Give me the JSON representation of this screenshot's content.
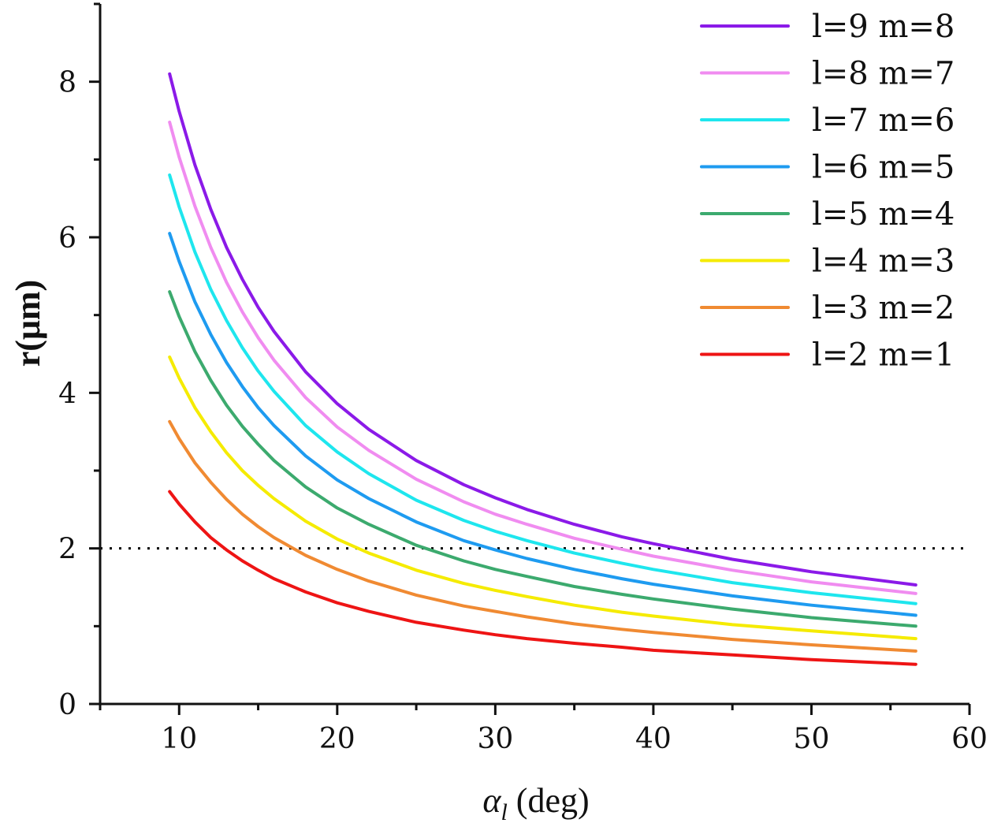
{
  "chart_data": {
    "type": "line",
    "xlabel": {
      "symbol": "α",
      "subscript": "l",
      "unit": " (deg)"
    },
    "ylabel": "r(μm)",
    "xlim": [
      5,
      60
    ],
    "ylim": [
      0,
      9
    ],
    "xticks": [
      10,
      20,
      30,
      40,
      50,
      60
    ],
    "yticks": [
      0,
      2,
      4,
      6,
      8
    ],
    "grid": false,
    "legend_position": "top-right",
    "reference_line": {
      "y": 2,
      "style": "dotted",
      "color": "#000000"
    },
    "x": [
      9.4,
      10,
      11,
      12,
      13,
      14,
      15,
      16,
      18,
      20,
      22,
      25,
      28,
      30,
      32,
      35,
      38,
      40,
      45,
      50,
      56.6
    ],
    "series": [
      {
        "name": "l=9  m=8",
        "color": "#8B1AE8",
        "values": [
          8.1,
          7.62,
          6.93,
          6.36,
          5.87,
          5.46,
          5.1,
          4.79,
          4.27,
          3.86,
          3.53,
          3.13,
          2.82,
          2.65,
          2.5,
          2.31,
          2.15,
          2.06,
          1.86,
          1.7,
          1.53
        ]
      },
      {
        "name": "l=8  m=7",
        "color": "#F08CF0",
        "values": [
          7.48,
          7.03,
          6.4,
          5.87,
          5.42,
          5.04,
          4.71,
          4.42,
          3.94,
          3.56,
          3.26,
          2.89,
          2.6,
          2.44,
          2.31,
          2.13,
          1.99,
          1.9,
          1.72,
          1.57,
          1.42
        ]
      },
      {
        "name": "l=7  m=6",
        "color": "#1EE6EE",
        "values": [
          6.8,
          6.39,
          5.81,
          5.33,
          4.93,
          4.58,
          4.28,
          4.02,
          3.58,
          3.24,
          2.96,
          2.62,
          2.36,
          2.22,
          2.1,
          1.94,
          1.81,
          1.73,
          1.56,
          1.43,
          1.29
        ]
      },
      {
        "name": "l=6  m=5",
        "color": "#1E9BF0",
        "values": [
          6.05,
          5.69,
          5.17,
          4.75,
          4.39,
          4.08,
          3.81,
          3.58,
          3.19,
          2.88,
          2.64,
          2.34,
          2.1,
          1.98,
          1.87,
          1.73,
          1.61,
          1.54,
          1.39,
          1.27,
          1.14
        ]
      },
      {
        "name": "l=5  m=4",
        "color": "#3CAA6E",
        "values": [
          5.3,
          4.98,
          4.53,
          4.16,
          3.84,
          3.57,
          3.34,
          3.13,
          2.79,
          2.52,
          2.31,
          2.04,
          1.84,
          1.73,
          1.64,
          1.51,
          1.41,
          1.35,
          1.22,
          1.11,
          1.0
        ]
      },
      {
        "name": "l=4  m=3",
        "color": "#F5EB00",
        "values": [
          4.46,
          4.19,
          3.81,
          3.5,
          3.23,
          3.0,
          2.81,
          2.64,
          2.35,
          2.12,
          1.94,
          1.72,
          1.55,
          1.46,
          1.38,
          1.27,
          1.18,
          1.13,
          1.02,
          0.94,
          0.84
        ]
      },
      {
        "name": "l=3  m=2",
        "color": "#F08A32",
        "values": [
          3.63,
          3.41,
          3.1,
          2.85,
          2.63,
          2.44,
          2.28,
          2.14,
          1.91,
          1.73,
          1.58,
          1.4,
          1.26,
          1.19,
          1.12,
          1.03,
          0.96,
          0.92,
          0.83,
          0.76,
          0.68
        ]
      },
      {
        "name": "l=2  m=1",
        "color": "#EE1414",
        "values": [
          2.73,
          2.57,
          2.34,
          2.14,
          1.98,
          1.84,
          1.72,
          1.61,
          1.44,
          1.3,
          1.19,
          1.05,
          0.95,
          0.89,
          0.84,
          0.78,
          0.73,
          0.69,
          0.63,
          0.57,
          0.51
        ]
      }
    ]
  }
}
